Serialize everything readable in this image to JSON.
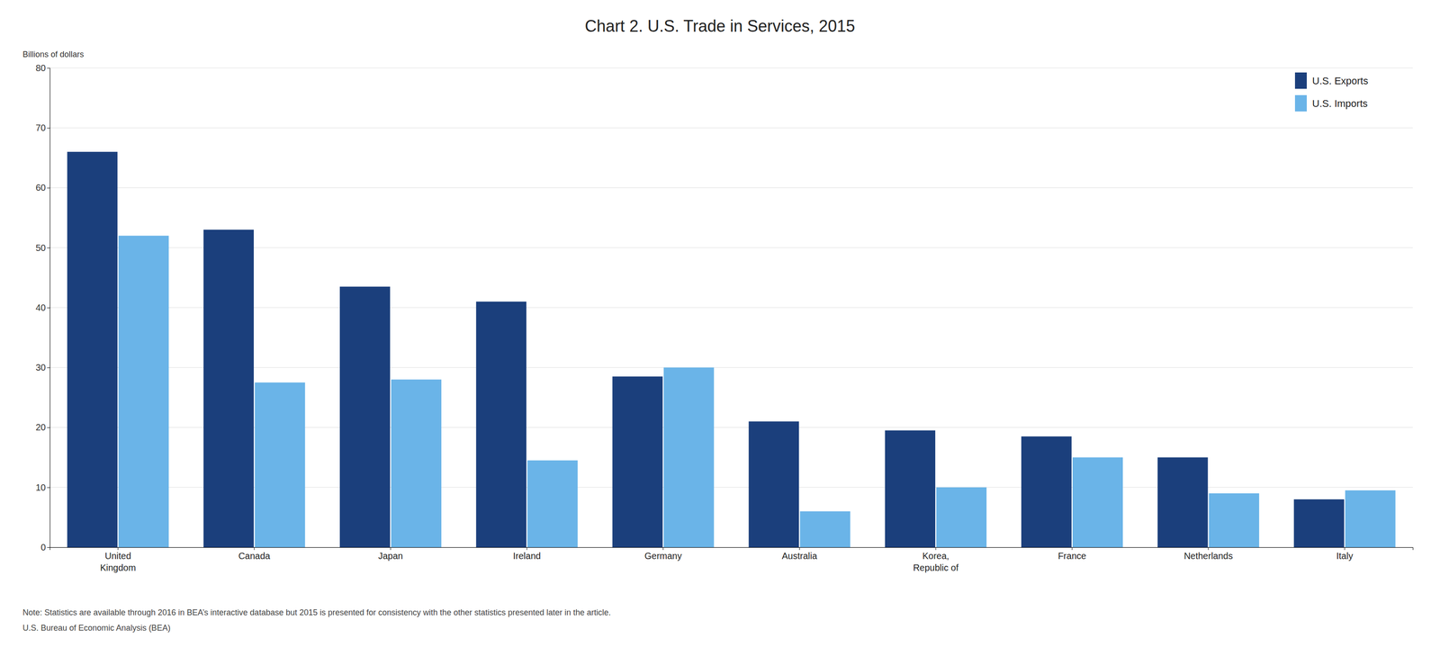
{
  "chart_data": {
    "type": "bar",
    "title": "Chart 2. U.S. Trade in Services, 2015",
    "ylabel": "Billions of dollars",
    "annotations": [
      "Note: Statistics are available through 2016 in BEA’s interactive database but 2015 is presented for consistency with the other statistics presented later in the article.",
      "U.S. Bureau of Economic Analysis (BEA)"
    ],
    "categories": [
      "United\nKingdom",
      "Canada",
      "Japan",
      "Ireland",
      "Germany",
      "Australia",
      "Korea,\nRepublic of",
      "France",
      "Netherlands",
      "Italy"
    ],
    "series": [
      {
        "name": "U.S. Exports",
        "color": "#1b3f7c",
        "values": [
          66,
          53,
          43.5,
          41,
          28.5,
          21,
          19.5,
          18.5,
          15,
          8
        ]
      },
      {
        "name": "U.S. Imports",
        "color": "#6ab4e8",
        "values": [
          52,
          27.5,
          28,
          14.5,
          30,
          6,
          10,
          15,
          9,
          9.5
        ]
      }
    ],
    "ylim": [
      0,
      80
    ],
    "yticks": [
      0,
      10,
      20,
      30,
      40,
      50,
      60,
      70,
      80
    ],
    "grid": true,
    "legend": "upper right"
  }
}
